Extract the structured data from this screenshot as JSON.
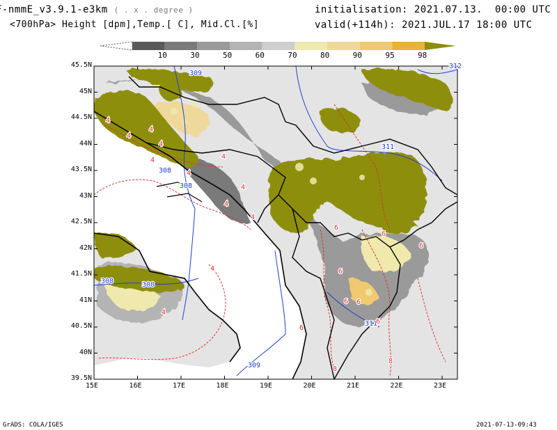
{
  "header": {
    "model": "F-nmmE_v3.9.1-e3km",
    "units_note": "( . x . degree )",
    "fields": "<700hPa> Height [dpm],Temp.[ C], Mid.Cl.[%]",
    "init": "initialisation: 2021.07.13.  00:00 UTC",
    "valid": "valid(+114h): 2021.JUL.17 18:00 UTC"
  },
  "legend": {
    "labels": [
      "10",
      "30",
      "50",
      "60",
      "70",
      "80",
      "90",
      "95",
      "98"
    ],
    "colors": [
      "#5a5a5a",
      "#7a7a7a",
      "#9a9a9a",
      "#b4b4b4",
      "#cfcfcf",
      "#efe9ad",
      "#efd99a",
      "#f0c96f",
      "#e9b03c",
      "#8e8e0c"
    ]
  },
  "axes": {
    "lat_labels": [
      "45.5N",
      "45N",
      "44.5N",
      "44N",
      "43.5N",
      "43N",
      "42.5N",
      "42N",
      "41.5N",
      "41N",
      "40.5N",
      "40N",
      "39.5N"
    ],
    "lon_labels": [
      "15E",
      "16E",
      "17E",
      "18E",
      "19E",
      "20E",
      "21E",
      "22E",
      "23E"
    ]
  },
  "contour_labels": {
    "height": [
      "309",
      "312",
      "311",
      "308",
      "308",
      "308",
      "308",
      "309",
      "311"
    ],
    "temp": [
      "4",
      "4",
      "4",
      "4",
      "4",
      "4",
      "4",
      "4",
      "4",
      "4",
      "4",
      "4",
      "6",
      "6",
      "6",
      "6",
      "6",
      "6",
      "6",
      "6",
      "8",
      "8"
    ]
  },
  "footer": {
    "left": "GrADS: COLA/IGES",
    "right": "2021-07-13-09:43"
  },
  "colors": {
    "land": "#e4e4e4",
    "sea": "#ffffff",
    "cloud_high": "#8e8e0c",
    "coast": "#000000",
    "height_contour": "#1f3fcf",
    "temp_contour": "#e03030"
  }
}
